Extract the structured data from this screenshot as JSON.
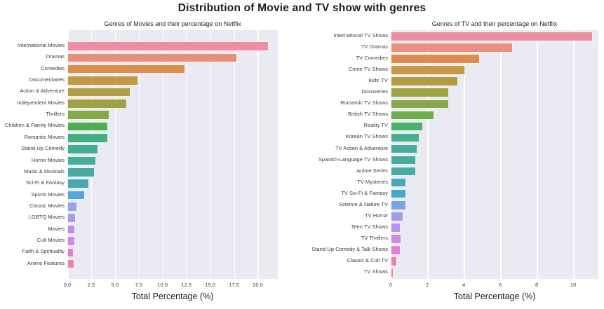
{
  "title": "Distribution of Movie and TV show with genres",
  "style": {
    "plot_background": "#eaeaf2",
    "grid_color": "#ffffff",
    "title_color": "#1a1d21",
    "tick_color": "#3d3d3d"
  },
  "chart_data": [
    {
      "type": "bar",
      "orientation": "horizontal",
      "title": "Genres of Movies and their percentage on Netflix",
      "xlabel": "Total Percentage (%)",
      "xlim": [
        0,
        22.1
      ],
      "grid": true,
      "legend": false,
      "xticks": [
        "0.0",
        "2.5",
        "5.0",
        "7.5",
        "10.0",
        "12.5",
        "15.0",
        "17.5",
        "20.0"
      ],
      "categories": [
        "International Movies",
        "Dramas",
        "Comedies",
        "Documentaries",
        "Action & Adventure",
        "Independent Movies",
        "Thrillers",
        "Children & Family Movies",
        "Romantic Movies",
        "Stand-Up Comedy",
        "Horror Movies",
        "Music & Musicals",
        "Sci-Fi & Fantasy",
        "Sports Movies",
        "Classic Movies",
        "LGBTQ Movies",
        "Movies",
        "Cult Movies",
        "Faith & Spirituality",
        "Anime Features"
      ],
      "values": [
        21.0,
        17.7,
        12.2,
        7.3,
        6.5,
        6.1,
        4.3,
        4.1,
        4.1,
        3.1,
        2.9,
        2.7,
        2.1,
        1.7,
        0.9,
        0.7,
        0.65,
        0.65,
        0.55,
        0.6
      ],
      "colors": [
        "#ed8fa4",
        "#e78f7e",
        "#d98e4b",
        "#c19a46",
        "#b09d44",
        "#9ea246",
        "#83a94b",
        "#4fae55",
        "#45ad82",
        "#46ac92",
        "#47ab9c",
        "#48aaa5",
        "#49a8b4",
        "#56a6da",
        "#96a3ea",
        "#a89aee",
        "#bd8eea",
        "#d985e5",
        "#e87fc4",
        "#e8879f"
      ]
    },
    {
      "type": "bar",
      "orientation": "horizontal",
      "title": "Genres of TV and their percentage on Netflix",
      "xlabel": "Total Percentage (%)",
      "xlim": [
        0,
        11.38
      ],
      "grid": true,
      "legend": false,
      "xticks": [
        "0",
        "2",
        "4",
        "6",
        "8",
        "10"
      ],
      "categories": [
        "International TV Shows",
        "TV Dramas",
        "TV Comedies",
        "Crime TV Shows",
        "Kids' TV",
        "Docuseries",
        "Romantic TV Shows",
        "British TV Shows",
        "Reality TV",
        "Korean TV Shows",
        "TV Action & Adventure",
        "Spanish-Language TV Shows",
        "Anime Series",
        "TV Mysteries",
        "TV Sci-Fi & Fantasy",
        "Science & Nature TV",
        "TV Horror",
        "Teen TV Shows",
        "TV Thrillers",
        "Stand-Up Comedy & Talk Shows",
        "Classic & Cult TV",
        "TV Shows"
      ],
      "values": [
        11.0,
        6.6,
        4.8,
        4.0,
        3.6,
        3.1,
        3.1,
        2.3,
        1.7,
        1.5,
        1.4,
        1.3,
        1.3,
        0.76,
        0.77,
        0.77,
        0.63,
        0.47,
        0.5,
        0.47,
        0.27,
        0.08
      ],
      "colors": [
        "#ec8fa2",
        "#e89080",
        "#d98e4d",
        "#c69847",
        "#b29c43",
        "#a1a246",
        "#8aa84b",
        "#6cad4d",
        "#4bb06a",
        "#49ae8b",
        "#48ad98",
        "#49ab9f",
        "#49aaa8",
        "#49a8b5",
        "#4ba6cd",
        "#7ba3e8",
        "#a49cee",
        "#b793ee",
        "#cc8ae8",
        "#e380dc",
        "#ea81bb",
        "#ec8a9e"
      ]
    }
  ]
}
